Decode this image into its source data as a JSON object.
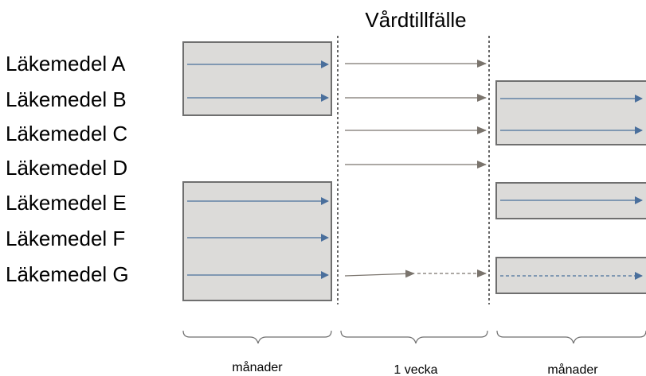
{
  "title": "Vårdtillfälle",
  "drugs": [
    "Läkemedel A",
    "Läkemedel B",
    "Läkemedel C",
    "Läkemedel D",
    "Läkemedel E",
    "Läkemedel F",
    "Läkemedel G"
  ],
  "periods": {
    "before": "månader",
    "during": "1 vecka",
    "after": "månader"
  },
  "colors": {
    "box_fill": "#dcdbd9",
    "box_stroke": "#6f6f6f",
    "blue_arrow": "#4a6f9c",
    "gray_arrow": "#7a746d",
    "divider": "#000000"
  }
}
